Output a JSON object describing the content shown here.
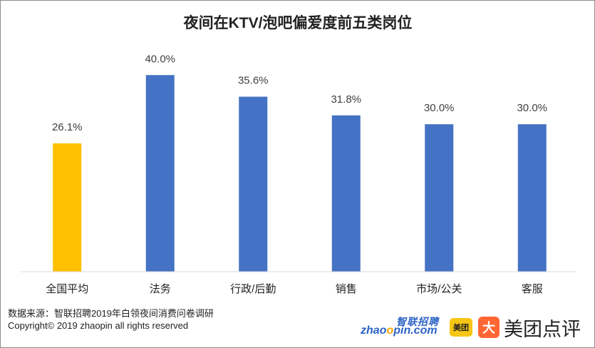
{
  "chart_data": {
    "type": "bar",
    "title": "夜间在KTV/泡吧偏爱度前五类岗位",
    "categories": [
      "全国平均",
      "法务",
      "行政/后勤",
      "销售",
      "市场/公关",
      "客服"
    ],
    "values": [
      26.1,
      40.0,
      35.6,
      31.8,
      30.0,
      30.0
    ],
    "value_labels": [
      "26.1%",
      "40.0%",
      "35.6%",
      "31.8%",
      "30.0%",
      "30.0%"
    ],
    "unit": "%",
    "bar_colors": [
      "#ffc000",
      "#4472c4",
      "#4472c4",
      "#4472c4",
      "#4472c4",
      "#4472c4"
    ],
    "ylim": [
      0,
      47
    ],
    "grid": false,
    "legend": "none"
  },
  "footer": {
    "source": "数据来源：智联招聘2019年白领夜间消费问卷调研",
    "copyright": "Copyright© 2019 zhaopin all rights reserved"
  },
  "logos": {
    "zhaopin_cn": "智联招聘",
    "zhaopin_en_pre": "zhao",
    "zhaopin_en_o": "o",
    "zhaopin_en_post": "pin.com",
    "meituan_badge": "美团",
    "dianping_icon": "大",
    "dianping_text": "美团点评"
  }
}
